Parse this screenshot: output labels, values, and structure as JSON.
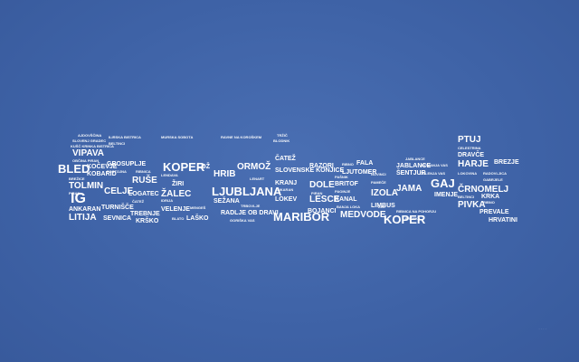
{
  "wallpaper": {
    "background_color": "#3f64a8",
    "text_color": "#ffffff"
  },
  "cloud": {
    "letter_f": {
      "words": [
        "AJDOVŠČINA",
        "SLOVENJ GRADEC",
        "KUŠČ KRINKA BISTRICA",
        "VIPAVA",
        "OBČINA PIRAN",
        "BLED",
        "KOČEVJE",
        "VIPAVA",
        "KOBARID",
        "BREŽICE",
        "TOLMIN",
        "PIRAN",
        "IG",
        "ANKARAN",
        "LITIJA",
        "ZAGORJE",
        "SEŽANA"
      ]
    },
    "letter_a": {
      "words": [
        "ILIRSKA BISTRICA",
        "GROSUPLJE",
        "RUŠE",
        "CELJE",
        "LOGATEC",
        "TURNIŠČE",
        "TREBNJE",
        "SEVNICA",
        "KRŠKO",
        "BELTINCI",
        "ČATEŽ",
        "POSTOJNA",
        "RIBNICA"
      ]
    },
    "letter_c": {
      "words": [
        "MURSKA SOBOTA",
        "KOPER",
        "LOŽ",
        "LENDAVA",
        "ŽIRI",
        "ŽALEC",
        "VELENJE",
        "MENGEŠ",
        "BLATO",
        "LAŠKO",
        "IDRIJA",
        "KAMNIK"
      ]
    },
    "letter_e": {
      "words": [
        "RAVNE NA KOROŠKEM",
        "HRIB",
        "ORMOŽ",
        "LJUBLJANA",
        "SEŽANA",
        "TRBOVLJE",
        "PTUJ",
        "RADLJE OB DRAVI",
        "GORIŠKA VAS",
        "LENART"
      ]
    },
    "letter_b": {
      "words": [
        "ČATEŽ",
        "BLODNIK",
        "SLOVENSKE KONJICE",
        "KRANJ",
        "ANKARAN",
        "LOKEV",
        "MARIBOR",
        "BOJANCI",
        "DOLE",
        "LESCE",
        "RAZORI",
        "BLED",
        "TRŽIČ",
        "PIRAN"
      ]
    },
    "letter_o1": {
      "words": [
        "RIBNO",
        "FALA",
        "LJUTOMER",
        "BRITOF",
        "PAŠNIK",
        "PAOINJE",
        "KANAL",
        "MEDVODE",
        "BANJA LOKA",
        "BLED",
        "ŽIRI",
        "DOLENJA VAS"
      ]
    },
    "letter_o2": {
      "words": [
        "JABLANCE",
        "RUMANJA VAS",
        "ŠENTJUR",
        "JAMA",
        "IZOLA",
        "LIMBUS",
        "KOPER",
        "GAJ",
        "IMENJE",
        "NOVINCI",
        "PAMEČE",
        "DOLENJA VAS",
        "RIBNICA NA POHORJU",
        "PRESKA"
      ]
    },
    "letter_k": {
      "words": [
        "PTUJ",
        "CELESTRINA",
        "DRAVČE",
        "HARJE",
        "BREZJE",
        "ČRNOMELJ",
        "KRKA",
        "PIVKA",
        "RIBNO",
        "PREVALE",
        "HRVATINI",
        "LOKOVINA",
        "RADOVLJICA",
        "BELTINCI",
        "GABRJELE"
      ]
    }
  },
  "watermark": "· · · ·"
}
